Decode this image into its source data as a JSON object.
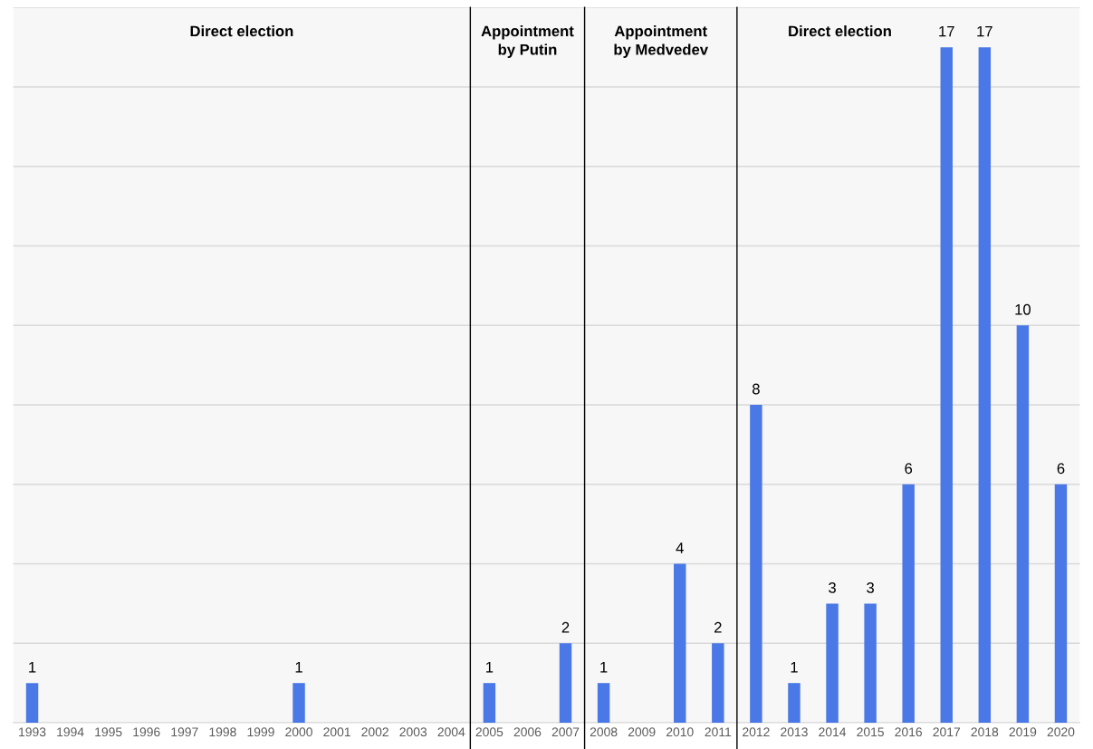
{
  "chart_data": {
    "type": "bar",
    "categories": [
      "1993",
      "1994",
      "1995",
      "1996",
      "1997",
      "1998",
      "1999",
      "2000",
      "2001",
      "2002",
      "2003",
      "2004",
      "2005",
      "2006",
      "2007",
      "2008",
      "2009",
      "2010",
      "2011",
      "2012",
      "2013",
      "2014",
      "2015",
      "2016",
      "2017",
      "2018",
      "2019",
      "2020"
    ],
    "values": [
      1,
      null,
      null,
      null,
      null,
      null,
      null,
      1,
      null,
      null,
      null,
      null,
      1,
      null,
      2,
      1,
      null,
      4,
      2,
      8,
      1,
      3,
      3,
      6,
      17,
      17,
      10,
      6
    ],
    "color": "#4a78e6",
    "data_labels": true,
    "ylim": [
      0,
      18
    ],
    "yticks": [
      {
        "value": 0,
        "label": null
      },
      {
        "value": 2,
        "label": null
      },
      {
        "value": 4,
        "label": null
      },
      {
        "value": 6,
        "label": null
      },
      {
        "value": 8,
        "label": null
      },
      {
        "value": 10,
        "label": null
      },
      {
        "value": 12,
        "label": null
      },
      {
        "value": 14,
        "label": null
      },
      {
        "value": 16,
        "label": null
      },
      {
        "value": 18,
        "label": null
      }
    ],
    "tick_labels": "x",
    "grid": "y",
    "bands": [
      {
        "axis": "x",
        "from": "1993",
        "to": "2004",
        "label": "Direct election",
        "color": "#000000"
      },
      {
        "axis": "x",
        "from": "2005",
        "to": "2007",
        "label": "Appointment\nby Putin",
        "color": "#000000"
      },
      {
        "axis": "x",
        "from": "2008",
        "to": "2011",
        "label": "Appointment\nby Medvedev",
        "color": "#000000"
      },
      {
        "axis": "x",
        "from": "2012",
        "to": "2020",
        "label": "Direct election",
        "color": "#000000"
      }
    ]
  }
}
